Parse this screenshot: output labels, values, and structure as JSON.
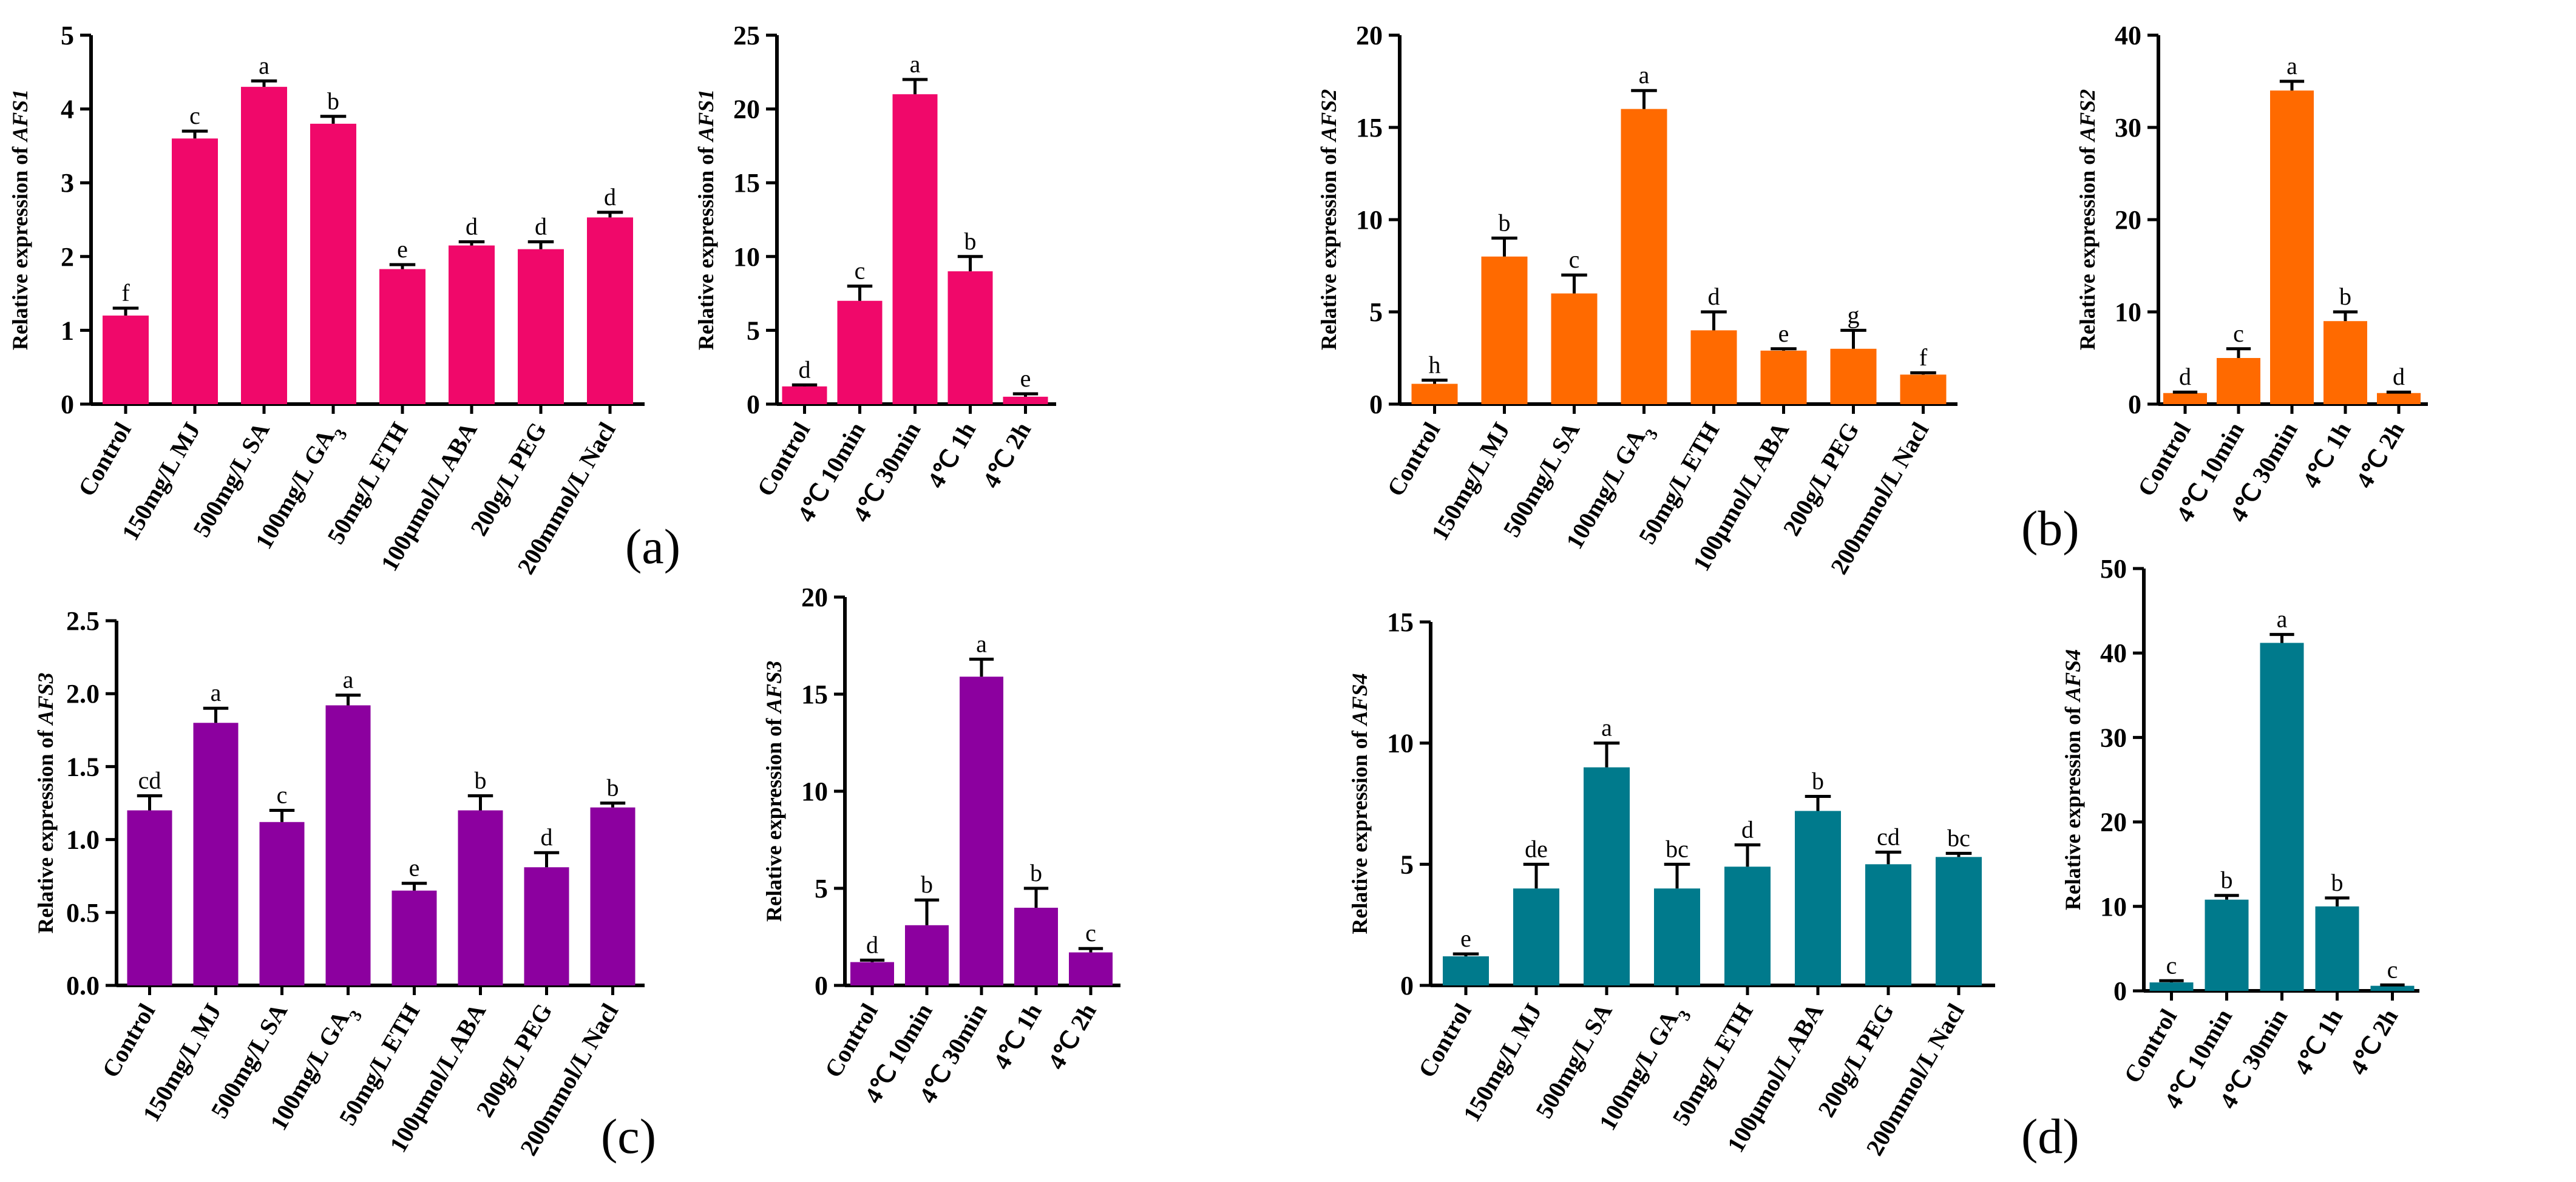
{
  "chart_data": [
    {
      "type": "bar",
      "color": "#f0086a",
      "ylabel_prefix": "Relative expression of ",
      "ylabel_gene": "AFS1",
      "ylim": [
        0,
        5
      ],
      "yticks": [
        "0",
        "1",
        "2",
        "3",
        "4",
        "5"
      ],
      "categories": [
        "Control",
        "150mg/L MJ",
        "500mg/L SA",
        "100mg/L GA3",
        "50mg/L ETH",
        "100μmol/L ABA",
        "200g/L PEG",
        "200mmol/L Nacl"
      ],
      "values": [
        1.2,
        3.6,
        4.3,
        3.8,
        1.83,
        2.15,
        2.1,
        2.53
      ],
      "errors": [
        0.1,
        0.1,
        0.08,
        0.1,
        0.06,
        0.05,
        0.1,
        0.07
      ],
      "letters": [
        "f",
        "c",
        "a",
        "b",
        "e",
        "d",
        "d",
        "d"
      ]
    },
    {
      "type": "bar",
      "color": "#f0086a",
      "ylabel_prefix": "Relative expression of ",
      "ylabel_gene": "AFS1",
      "ylim": [
        0,
        25
      ],
      "yticks": [
        "0",
        "5",
        "10",
        "15",
        "20",
        "25"
      ],
      "categories": [
        "Control",
        "4℃ 10min",
        "4℃ 30min",
        "4℃ 1h",
        "4℃ 2h"
      ],
      "values": [
        1.2,
        7.0,
        21.0,
        9.0,
        0.5
      ],
      "errors": [
        0.1,
        1.0,
        1.0,
        1.0,
        0.2
      ],
      "letters": [
        "d",
        "c",
        "a",
        "b",
        "e"
      ]
    },
    {
      "type": "bar",
      "color": "#ff6a00",
      "ylabel_prefix": "Relative expression of ",
      "ylabel_gene": "AFS2",
      "ylim": [
        0,
        20
      ],
      "yticks": [
        "0",
        "5",
        "10",
        "15",
        "20"
      ],
      "categories": [
        "Control",
        "150mg/L MJ",
        "500mg/L SA",
        "100mg/L GA3",
        "50mg/L ETH",
        "100μmol/L ABA",
        "200g/L PEG",
        "200mmol/L Nacl"
      ],
      "values": [
        1.1,
        8.0,
        6.0,
        16.0,
        4.0,
        2.9,
        3.0,
        1.6
      ],
      "errors": [
        0.2,
        1.0,
        1.0,
        1.0,
        1.0,
        0.1,
        1.0,
        0.1
      ],
      "letters": [
        "h",
        "b",
        "c",
        "a",
        "d",
        "e",
        "g",
        "f"
      ]
    },
    {
      "type": "bar",
      "color": "#ff6a00",
      "ylabel_prefix": "Relative expression of ",
      "ylabel_gene": "AFS2",
      "ylim": [
        0,
        40
      ],
      "yticks": [
        "0",
        "10",
        "20",
        "30",
        "40"
      ],
      "categories": [
        "Control",
        "4℃ 10min",
        "4℃ 30min",
        "4℃ 1h",
        "4℃ 2h"
      ],
      "values": [
        1.2,
        5.0,
        34.0,
        9.0,
        1.2
      ],
      "errors": [
        0.1,
        1.0,
        1.0,
        1.0,
        0.1
      ],
      "letters": [
        "d",
        "c",
        "a",
        "b",
        "d"
      ]
    },
    {
      "type": "bar",
      "color": "#8c009f",
      "ylabel_prefix": "Relative expression of ",
      "ylabel_gene": "AFS3",
      "ylim": [
        0,
        2.5
      ],
      "yticks": [
        "0.0",
        "0.5",
        "1.0",
        "1.5",
        "2.0",
        "2.5"
      ],
      "categories": [
        "Control",
        "150mg/L MJ",
        "500mg/L SA",
        "100mg/L GA3",
        "50mg/L ETH",
        "100μmol/L ABA",
        "200g/L PEG",
        "200mmol/L Nacl"
      ],
      "values": [
        1.2,
        1.8,
        1.12,
        1.92,
        0.65,
        1.2,
        0.81,
        1.22
      ],
      "errors": [
        0.1,
        0.1,
        0.08,
        0.07,
        0.05,
        0.1,
        0.1,
        0.03
      ],
      "letters": [
        "cd",
        "a",
        "c",
        "a",
        "e",
        "b",
        "d",
        "b"
      ]
    },
    {
      "type": "bar",
      "color": "#8c009f",
      "ylabel_prefix": "Relative expression of ",
      "ylabel_gene": "AFS3",
      "ylim": [
        0,
        20
      ],
      "yticks": [
        "0",
        "5",
        "10",
        "15",
        "20"
      ],
      "categories": [
        "Control",
        "4℃ 10min",
        "4℃ 30min",
        "4℃ 1h",
        "4℃ 2h"
      ],
      "values": [
        1.2,
        3.1,
        15.9,
        4.0,
        1.7
      ],
      "errors": [
        0.1,
        1.3,
        0.9,
        1.0,
        0.2
      ],
      "letters": [
        "d",
        "b",
        "a",
        "b",
        "c"
      ]
    },
    {
      "type": "bar",
      "color": "#007a8c",
      "ylabel_prefix": "Relative expression of ",
      "ylabel_gene": "AFS4",
      "ylim": [
        0,
        15
      ],
      "yticks": [
        "0",
        "5",
        "10",
        "15"
      ],
      "categories": [
        "Control",
        "150mg/L MJ",
        "500mg/L SA",
        "100mg/L GA3",
        "50mg/L ETH",
        "100μmol/L ABA",
        "200g/L PEG",
        "200mmol/L Nacl"
      ],
      "values": [
        1.2,
        4.0,
        9.0,
        4.0,
        4.9,
        7.2,
        5.0,
        5.3
      ],
      "errors": [
        0.1,
        1.0,
        1.0,
        1.0,
        0.9,
        0.6,
        0.5,
        0.15
      ],
      "letters": [
        "e",
        "de",
        "a",
        "bc",
        "d",
        "b",
        "cd",
        "bc"
      ]
    },
    {
      "type": "bar",
      "color": "#007a8c",
      "ylabel_prefix": "Relative expression of ",
      "ylabel_gene": "AFS4",
      "ylim": [
        0,
        50
      ],
      "yticks": [
        "0",
        "10",
        "20",
        "30",
        "40",
        "50"
      ],
      "categories": [
        "Control",
        "4℃ 10min",
        "4℃ 30min",
        "4℃ 1h",
        "4℃ 2h"
      ],
      "values": [
        1.0,
        10.8,
        41.2,
        10.0,
        0.6
      ],
      "errors": [
        0.2,
        0.5,
        1.0,
        1.0,
        0.1
      ],
      "letters": [
        "c",
        "b",
        "a",
        "b",
        "c"
      ]
    }
  ],
  "panel_labels": [
    "(a)",
    "(b)",
    "(c)",
    "(d)"
  ]
}
